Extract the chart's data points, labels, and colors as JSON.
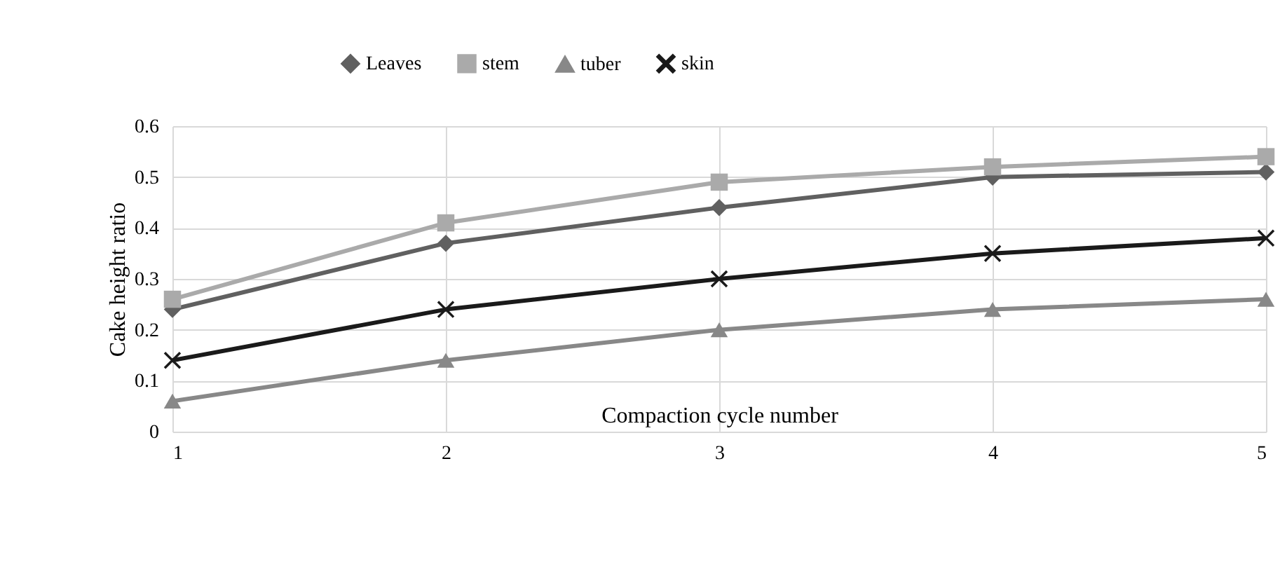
{
  "chart_data": {
    "type": "line",
    "xlabel": "Compaction cycle number",
    "ylabel": "Cake height ratio",
    "x": [
      1,
      2,
      3,
      4,
      5
    ],
    "xlim": [
      1,
      5
    ],
    "xticks": [
      1,
      2,
      3,
      4,
      5
    ],
    "ylim": [
      0,
      0.6
    ],
    "yticks": [
      0,
      0.1,
      0.2,
      0.3,
      0.4,
      0.5,
      0.6
    ],
    "grid": true,
    "legend": "top",
    "line_style": "solid",
    "series": [
      {
        "name": "Leaves",
        "color": "#606060",
        "marker": "diamond",
        "values": [
          0.24,
          0.37,
          0.44,
          0.5,
          0.51
        ]
      },
      {
        "name": "stem",
        "color": "#aaaaaa",
        "marker": "square",
        "values": [
          0.26,
          0.41,
          0.49,
          0.52,
          0.54
        ]
      },
      {
        "name": "tuber",
        "color": "#888888",
        "marker": "triangle",
        "values": [
          0.06,
          0.14,
          0.2,
          0.24,
          0.26
        ]
      },
      {
        "name": "skin",
        "color": "#1a1a1a",
        "marker": "cross",
        "values": [
          0.14,
          0.24,
          0.3,
          0.35,
          0.38
        ]
      }
    ]
  }
}
